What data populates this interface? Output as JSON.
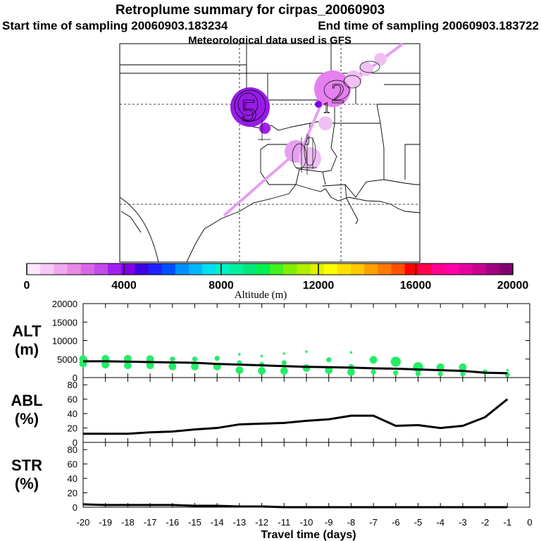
{
  "header": {
    "title": "Retroplume summary for cirpas_20060903",
    "start_label": "Start time of sampling 20060903.183234",
    "end_label": "End time of sampling 20060903.183722",
    "met_label": "Meteorological data used is GFS"
  },
  "map": {
    "plume_labels": [
      {
        "text": "5",
        "name": "plume-marker-5"
      },
      {
        "text": "2",
        "name": "plume-marker-2"
      },
      {
        "text": "1",
        "name": "plume-marker-1"
      }
    ]
  },
  "colorbar": {
    "label": "Altitude (m)",
    "tick_labels": [
      "0",
      "4000",
      "8000",
      "12000",
      "16000",
      "20000"
    ],
    "colors": [
      "#ffe6ff",
      "#f7c8f7",
      "#f0a8f0",
      "#e68ae6",
      "#d966e6",
      "#c24ce6",
      "#a020f0",
      "#8000e6",
      "#4000e0",
      "#2020ff",
      "#0050ff",
      "#0090ff",
      "#00b8ff",
      "#00e0f0",
      "#00f0c8",
      "#00f0a0",
      "#00e878",
      "#00f050",
      "#40f020",
      "#80f000",
      "#b0f000",
      "#e0f000",
      "#ffff00",
      "#ffe000",
      "#ffc800",
      "#ffa000",
      "#ff7800",
      "#ff5000",
      "#ff0000",
      "#ff0050",
      "#ff0090",
      "#ff00a8",
      "#e600a0",
      "#c80090",
      "#a00080",
      "#800070"
    ]
  },
  "colors": {
    "points": "#22ee66",
    "line": "#000000",
    "plume_track": "#e6a0f0"
  },
  "chart_data": [
    {
      "type": "scatter",
      "name": "ALT",
      "ylabel": "ALT (m)",
      "ylabel_lines": [
        "ALT",
        "(m)"
      ],
      "ylim": [
        0,
        20000
      ],
      "xlim": [
        -20,
        0
      ],
      "yticks": [
        "0",
        "5000",
        "10000",
        "15000",
        "20000"
      ],
      "median_line": {
        "x": [
          -20,
          -19,
          -18,
          -17,
          -16,
          -15,
          -14,
          -13,
          -12,
          -11,
          -10,
          -9,
          -8,
          -7,
          -6,
          -5,
          -4,
          -3,
          -2,
          -1
        ],
        "y": [
          4400,
          4400,
          4300,
          4200,
          4100,
          4000,
          3700,
          3500,
          3300,
          3100,
          2900,
          2800,
          2700,
          2500,
          2400,
          2200,
          2000,
          1800,
          1300,
          1200
        ]
      },
      "points": [
        {
          "x": -20,
          "y": 5000,
          "size": 3
        },
        {
          "x": -20,
          "y": 3800,
          "size": 3
        },
        {
          "x": -19,
          "y": 5100,
          "size": 3
        },
        {
          "x": -19,
          "y": 3500,
          "size": 3
        },
        {
          "x": -18,
          "y": 5100,
          "size": 3
        },
        {
          "x": -18,
          "y": 3300,
          "size": 3
        },
        {
          "x": -17,
          "y": 5000,
          "size": 3
        },
        {
          "x": -17,
          "y": 3300,
          "size": 3
        },
        {
          "x": -16,
          "y": 5000,
          "size": 2
        },
        {
          "x": -16,
          "y": 3000,
          "size": 3
        },
        {
          "x": -15,
          "y": 5000,
          "size": 2
        },
        {
          "x": -15,
          "y": 3000,
          "size": 3
        },
        {
          "x": -14,
          "y": 5200,
          "size": 2
        },
        {
          "x": -14,
          "y": 3000,
          "size": 3
        },
        {
          "x": -13,
          "y": 6300,
          "size": 1
        },
        {
          "x": -13,
          "y": 4000,
          "size": 2
        },
        {
          "x": -13,
          "y": 2000,
          "size": 3
        },
        {
          "x": -12,
          "y": 5800,
          "size": 1
        },
        {
          "x": -12,
          "y": 3500,
          "size": 2
        },
        {
          "x": -12,
          "y": 1800,
          "size": 3
        },
        {
          "x": -11,
          "y": 6500,
          "size": 1
        },
        {
          "x": -11,
          "y": 4000,
          "size": 2
        },
        {
          "x": -11,
          "y": 1800,
          "size": 3
        },
        {
          "x": -10,
          "y": 7000,
          "size": 1
        },
        {
          "x": -10,
          "y": 2600,
          "size": 3
        },
        {
          "x": -9,
          "y": 4800,
          "size": 2
        },
        {
          "x": -9,
          "y": 2000,
          "size": 3
        },
        {
          "x": -8,
          "y": 6800,
          "size": 1
        },
        {
          "x": -8,
          "y": 3000,
          "size": 2
        },
        {
          "x": -8,
          "y": 1500,
          "size": 3
        },
        {
          "x": -7,
          "y": 4800,
          "size": 3
        },
        {
          "x": -7,
          "y": 1500,
          "size": 2
        },
        {
          "x": -6,
          "y": 4300,
          "size": 4
        },
        {
          "x": -6,
          "y": 1300,
          "size": 2
        },
        {
          "x": -5,
          "y": 2800,
          "size": 4
        },
        {
          "x": -5,
          "y": 1000,
          "size": 2
        },
        {
          "x": -4,
          "y": 2800,
          "size": 3
        },
        {
          "x": -4,
          "y": 1000,
          "size": 2
        },
        {
          "x": -3,
          "y": 2800,
          "size": 3
        },
        {
          "x": -3,
          "y": 1000,
          "size": 2
        },
        {
          "x": -2,
          "y": 1500,
          "size": 2
        },
        {
          "x": -1,
          "y": 2000,
          "size": 1
        },
        {
          "x": -1,
          "y": 800,
          "size": 2
        }
      ]
    },
    {
      "type": "line",
      "name": "ABL",
      "ylabel": "ABL (%)",
      "ylabel_lines": [
        "ABL",
        "(%)"
      ],
      "ylim": [
        0,
        90
      ],
      "xlim": [
        -20,
        0
      ],
      "yticks": [
        "0",
        "20",
        "40",
        "60",
        "80"
      ],
      "x": [
        -20,
        -19,
        -18,
        -17,
        -16,
        -15,
        -14,
        -13,
        -12,
        -11,
        -10,
        -9,
        -8,
        -7,
        -6,
        -5,
        -4,
        -3,
        -2,
        -1
      ],
      "y": [
        12,
        12,
        12,
        14,
        15,
        18,
        20,
        25,
        26,
        27,
        30,
        32,
        37,
        37,
        23,
        24,
        20,
        23,
        35,
        60
      ]
    },
    {
      "type": "line",
      "name": "STR",
      "ylabel": "STR (%)",
      "ylabel_lines": [
        "STR",
        "(%)"
      ],
      "ylim": [
        0,
        90
      ],
      "xlim": [
        -20,
        0
      ],
      "yticks": [
        "0",
        "20",
        "40",
        "60",
        "80"
      ],
      "x": [
        -20,
        -19,
        -18,
        -17,
        -16,
        -15,
        -14,
        -13,
        -12,
        -11,
        -10,
        -9,
        -8,
        -7,
        -6,
        -5,
        -4,
        -3,
        -2,
        -1
      ],
      "y": [
        4,
        3,
        3,
        3,
        3,
        2,
        2,
        1,
        1,
        0,
        0,
        0,
        0,
        0,
        0,
        0,
        0,
        0,
        0,
        0
      ]
    }
  ],
  "x_axis": {
    "label": "Travel time (days)",
    "ticks": [
      "-20",
      "-19",
      "-18",
      "-17",
      "-16",
      "-15",
      "-14",
      "-13",
      "-12",
      "-11",
      "-10",
      "-9",
      "-8",
      "-7",
      "-6",
      "-5",
      "-4",
      "-3",
      "-2",
      "-1",
      "0"
    ]
  }
}
